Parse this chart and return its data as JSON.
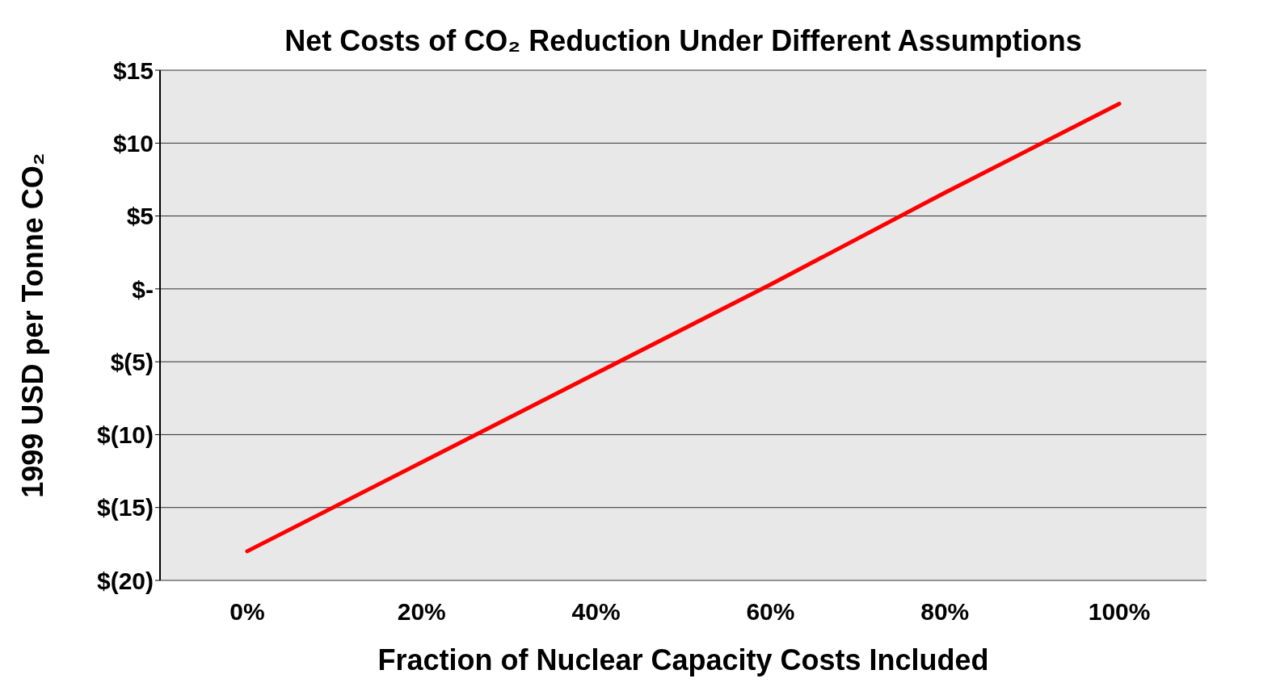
{
  "chart_data": {
    "type": "line",
    "title": "Net Costs of CO₂ Reduction Under Different Assumptions",
    "xlabel": "Fraction of Nuclear Capacity Costs Included",
    "ylabel": "1999 USD per Tonne CO₂",
    "categories": [
      "0%",
      "20%",
      "40%",
      "60%",
      "80%",
      "100%"
    ],
    "series": [
      {
        "color": "#ff0000",
        "values": [
          -18.0,
          -11.9,
          -5.8,
          0.3,
          6.6,
          12.7
        ]
      }
    ],
    "ylim": [
      -20,
      15
    ],
    "yticks": [
      {
        "value": -20,
        "label": "$(20)"
      },
      {
        "value": -15,
        "label": "$(15)"
      },
      {
        "value": -10,
        "label": "$(10)"
      },
      {
        "value": -5,
        "label": "$(5)"
      },
      {
        "value": 0,
        "label": "$-"
      },
      {
        "value": 5,
        "label": "$5"
      },
      {
        "value": 10,
        "label": "$10"
      },
      {
        "value": 15,
        "label": "$15"
      }
    ],
    "grid": "y",
    "legend": false,
    "marker": "none",
    "line_style": "solid"
  }
}
